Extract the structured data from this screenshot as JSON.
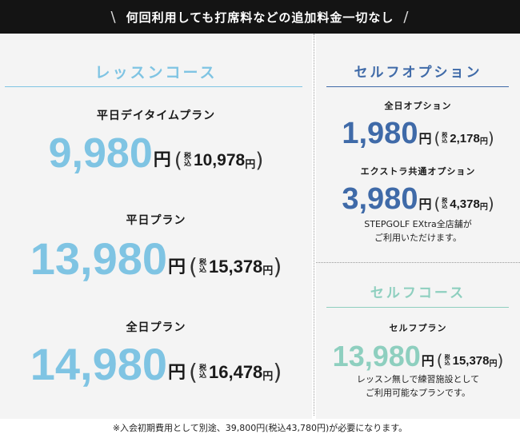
{
  "banner": {
    "left_slash": "\\",
    "text": "何回利用しても打席料などの追加料金一切なし",
    "right_slash": "/"
  },
  "lesson": {
    "title": "レッスンコース",
    "color": "#7fc4e3",
    "plans": [
      {
        "name": "平日デイタイムプラン",
        "price": "9,980",
        "yen": "円",
        "tax_label_top": "税",
        "tax_label_bottom": "込",
        "tax_price": "10,978",
        "tax_yen": "円"
      },
      {
        "name": "平日プラン",
        "price": "13,980",
        "yen": "円",
        "tax_label_top": "税",
        "tax_label_bottom": "込",
        "tax_price": "15,378",
        "tax_yen": "円"
      },
      {
        "name": "全日プラン",
        "price": "14,980",
        "yen": "円",
        "tax_label_top": "税",
        "tax_label_bottom": "込",
        "tax_price": "16,478",
        "tax_yen": "円"
      }
    ]
  },
  "self_option": {
    "title": "セルフオプション",
    "color": "#3f6aa8",
    "plans": [
      {
        "name": "全日オプション",
        "price": "1,980",
        "yen": "円",
        "tax_label_top": "税",
        "tax_label_bottom": "込",
        "tax_price": "2,178",
        "tax_yen": "円"
      },
      {
        "name": "エクストラ共通オプション",
        "price": "3,980",
        "yen": "円",
        "tax_label_top": "税",
        "tax_label_bottom": "込",
        "tax_price": "4,378",
        "tax_yen": "円"
      }
    ],
    "note_line1": "STEPGOLF EXtra全店舗が",
    "note_line2": "ご利用いただけます。"
  },
  "self_course": {
    "title": "セルフコース",
    "color": "#8ecfbf",
    "plans": [
      {
        "name": "セルフプラン",
        "price": "13,980",
        "yen": "円",
        "tax_label_top": "税",
        "tax_label_bottom": "込",
        "tax_price": "15,378",
        "tax_yen": "円"
      }
    ],
    "note_line1": "レッスン無しで練習施設として",
    "note_line2": "ご利用可能なプランです。"
  },
  "paren_open": "(",
  "paren_close": ")",
  "footer": "※入会初期費用として別途、39,800円(税込43,780円)が必要になります。"
}
